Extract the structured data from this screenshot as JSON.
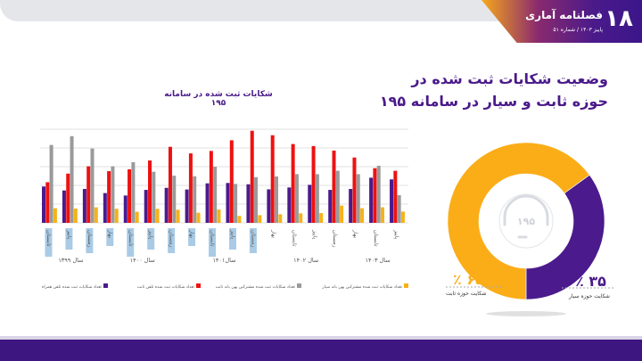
{
  "header": {
    "issue_number": "۱۸",
    "publication": "فصلنامه آماری",
    "subtitle": "پاییز ۱۴۰۳ / شماره ۵۱"
  },
  "page_title": "وضعیت شکایات ثبت شده در حوزه ثابت و سیار در سامانه ۱۹۵",
  "colors": {
    "purple": "#4b1a8c",
    "red": "#ee1111",
    "gray": "#9a9a9a",
    "yellow": "#f5b21a",
    "orange": "#fbad18"
  },
  "chart_data": [
    {
      "type": "bar",
      "title": "شکایات ثبت شده در سامانه ۱۹۵",
      "grid": true,
      "ylim": [
        0,
        5
      ],
      "legend": "bottom",
      "categories": [
        "تابستان",
        "پاییز",
        "زمستان",
        "بهار",
        "تابستان",
        "پاییز",
        "زمستان",
        "بهار",
        "تابستان",
        "پاییز",
        "زمستان",
        "بهار",
        "تابستان",
        "پاییز",
        "زمستان",
        "بهار",
        "تابستان",
        "پاییز"
      ],
      "year_groups": [
        {
          "label": "سال ۱۳۹۹",
          "count": 3
        },
        {
          "label": "سال ۱۴۰۰",
          "count": 4
        },
        {
          "label": "سال۱۴۰۱",
          "count": 4
        },
        {
          "label": "سال ۱۴۰۲",
          "count": 4
        },
        {
          "label": "سال ۱۴۰۳",
          "count": 3
        }
      ],
      "series": [
        {
          "name": "تعداد شکایات ثبت شده تلفن همراه",
          "color": "#4b1a8c",
          "values": [
            1.94,
            1.73,
            1.81,
            1.59,
            1.46,
            1.76,
            1.87,
            1.78,
            2.11,
            2.13,
            2.06,
            1.79,
            1.89,
            2.03,
            1.76,
            1.81,
            2.41,
            2.32
          ]
        },
        {
          "name": "تعداد شکایات ثبت شده تلفن ثابت",
          "color": "#ee1111",
          "values": [
            2.17,
            2.63,
            3.02,
            2.76,
            2.86,
            3.33,
            4.06,
            3.71,
            3.84,
            4.41,
            4.92,
            4.68,
            4.21,
            4.1,
            3.86,
            3.49,
            2.92,
            2.78
          ]
        },
        {
          "name": "تعداد شکایات ثبت شده مشترکین پهن باند ثابت",
          "color": "#9a9a9a",
          "values": [
            4.16,
            4.63,
            3.97,
            3.02,
            3.24,
            2.73,
            2.52,
            2.49,
            3.0,
            2.08,
            2.44,
            2.48,
            2.6,
            2.6,
            2.78,
            2.6,
            3.05,
            1.48
          ]
        },
        {
          "name": "تعداد شکایات ثبت شده مشترکین پهن باند سیار",
          "color": "#f5b21a",
          "values": [
            0.78,
            0.76,
            0.83,
            0.75,
            0.59,
            0.75,
            0.7,
            0.54,
            0.71,
            0.37,
            0.41,
            0.46,
            0.51,
            0.52,
            0.92,
            0.78,
            0.83,
            0.6
          ]
        }
      ]
    },
    {
      "type": "pie",
      "center_label": "۱۹۵",
      "slices": [
        {
          "label": "شکایت حوزه سیار",
          "value": 35,
          "display": "۳۵ ٪",
          "color": "#4b1a8c"
        },
        {
          "label": "شکایت حوزه ثابت",
          "value": 65,
          "display": "۶۵ ٪",
          "color": "#fbad18"
        }
      ]
    }
  ]
}
